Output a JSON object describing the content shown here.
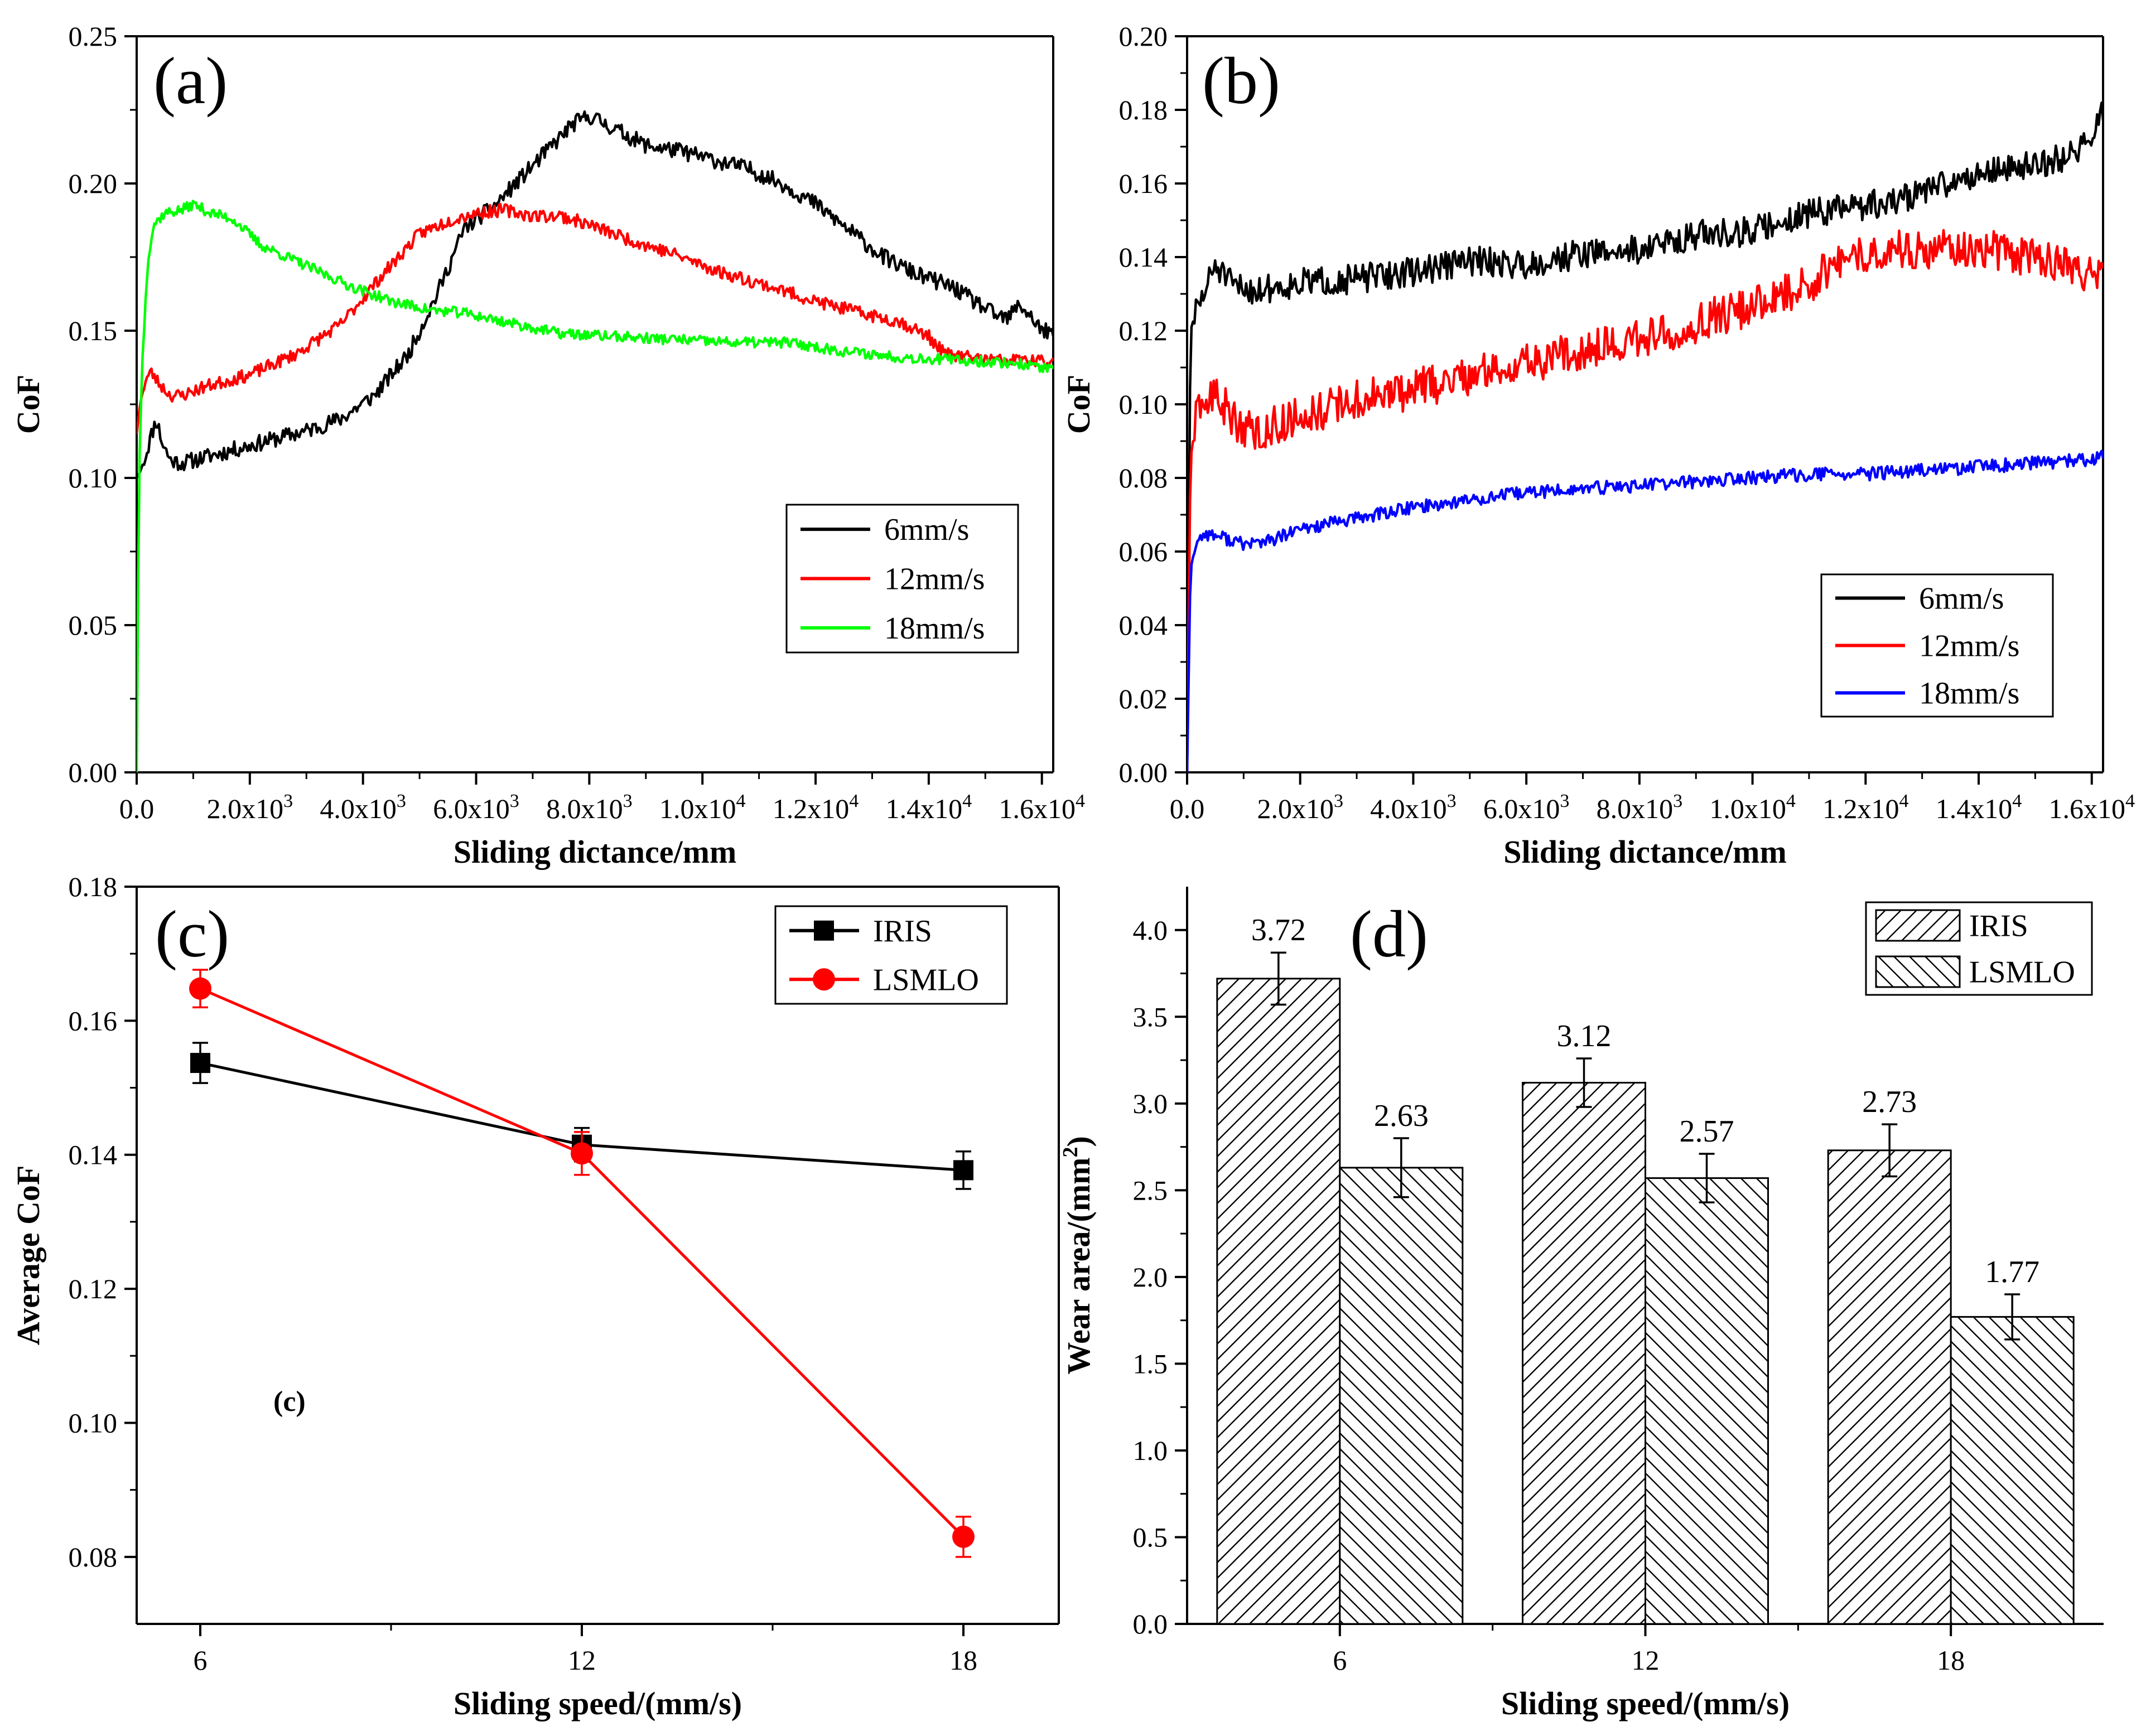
{
  "figure": {
    "background": "#ffffff"
  },
  "chart_data": [
    {
      "id": "a",
      "type": "line",
      "panel_label": "(a)",
      "xlabel": "Sliding dictance/mm",
      "ylabel": "CoF",
      "xlim": [
        0,
        16200
      ],
      "ylim": [
        0,
        0.25
      ],
      "xticks": [
        {
          "value": 0,
          "label": "0.0"
        },
        {
          "value": 2000,
          "label": "2.0x10",
          "exp": "3"
        },
        {
          "value": 4000,
          "label": "4.0x10",
          "exp": "3"
        },
        {
          "value": 6000,
          "label": "6.0x10",
          "exp": "3"
        },
        {
          "value": 8000,
          "label": "8.0x10",
          "exp": "3"
        },
        {
          "value": 10000,
          "label": "1.0x10",
          "exp": "4"
        },
        {
          "value": 12000,
          "label": "1.2x10",
          "exp": "4"
        },
        {
          "value": 14000,
          "label": "1.4x10",
          "exp": "4"
        },
        {
          "value": 16000,
          "label": "1.6x10",
          "exp": "4"
        }
      ],
      "yticks": [
        {
          "value": 0,
          "label": "0.00"
        },
        {
          "value": 0.05,
          "label": "0.05"
        },
        {
          "value": 0.1,
          "label": "0.10"
        },
        {
          "value": 0.15,
          "label": "0.15"
        },
        {
          "value": 0.2,
          "label": "0.20"
        },
        {
          "value": 0.25,
          "label": "0.25"
        }
      ],
      "legend_position": "middle-right",
      "series": [
        {
          "name": "6mm/s",
          "color": "#000000",
          "noise": 0.0028,
          "seed": 11,
          "x": [
            0,
            60,
            150,
            250,
            350,
            450,
            600,
            800,
            1200,
            2000,
            3000,
            3600,
            4200,
            4800,
            5300,
            5800,
            6300,
            6800,
            7300,
            7700,
            8000,
            8400,
            9000,
            9600,
            10200,
            10800,
            11400,
            12000,
            12600,
            13200,
            13800,
            14400,
            14800,
            15200,
            15400,
            15600,
            15800,
            16000,
            16200
          ],
          "y": [
            0.1,
            0.102,
            0.107,
            0.114,
            0.12,
            0.112,
            0.106,
            0.105,
            0.107,
            0.111,
            0.116,
            0.12,
            0.128,
            0.142,
            0.162,
            0.185,
            0.192,
            0.202,
            0.212,
            0.22,
            0.223,
            0.219,
            0.213,
            0.211,
            0.208,
            0.205,
            0.2,
            0.193,
            0.184,
            0.175,
            0.169,
            0.165,
            0.16,
            0.155,
            0.154,
            0.159,
            0.155,
            0.15,
            0.149
          ]
        },
        {
          "name": "12mm/s",
          "color": "#ff0000",
          "noise": 0.0022,
          "seed": 23,
          "x": [
            0,
            60,
            150,
            250,
            400,
            600,
            800,
            1200,
            2000,
            2800,
            3600,
            4300,
            5000,
            5600,
            6000,
            6500,
            7000,
            7500,
            8000,
            8700,
            9500,
            10300,
            11200,
            12000,
            12800,
            13500,
            14000,
            14300,
            14700,
            15200,
            15700,
            16200
          ],
          "y": [
            0.115,
            0.125,
            0.133,
            0.136,
            0.132,
            0.128,
            0.128,
            0.131,
            0.135,
            0.142,
            0.152,
            0.168,
            0.183,
            0.188,
            0.19,
            0.191,
            0.189,
            0.189,
            0.186,
            0.181,
            0.176,
            0.17,
            0.165,
            0.16,
            0.156,
            0.153,
            0.148,
            0.142,
            0.141,
            0.14,
            0.14,
            0.139
          ]
        },
        {
          "name": "18mm/s",
          "color": "#00ff00",
          "noise": 0.0018,
          "seed": 37,
          "x": [
            0,
            40,
            100,
            200,
            300,
            500,
            800,
            1000,
            1300,
            1700,
            2200,
            3000,
            3800,
            4500,
            5200,
            5800,
            6500,
            7500,
            8500,
            9500,
            10500,
            11500,
            12500,
            13500,
            14500,
            15500,
            16200
          ],
          "y": [
            0.0,
            0.1,
            0.14,
            0.175,
            0.186,
            0.19,
            0.191,
            0.193,
            0.19,
            0.188,
            0.179,
            0.172,
            0.165,
            0.16,
            0.157,
            0.156,
            0.153,
            0.149,
            0.148,
            0.147,
            0.146,
            0.146,
            0.143,
            0.141,
            0.14,
            0.139,
            0.137
          ]
        }
      ]
    },
    {
      "id": "b",
      "type": "line",
      "panel_label": "(b)",
      "xlabel": "Sliding dictance/mm",
      "ylabel": "CoF",
      "xlim": [
        0,
        16200
      ],
      "ylim": [
        0,
        0.2
      ],
      "xticks": [
        {
          "value": 0,
          "label": "0.0"
        },
        {
          "value": 2000,
          "label": "2.0x10",
          "exp": "3"
        },
        {
          "value": 4000,
          "label": "4.0x10",
          "exp": "3"
        },
        {
          "value": 6000,
          "label": "6.0x10",
          "exp": "3"
        },
        {
          "value": 8000,
          "label": "8.0x10",
          "exp": "3"
        },
        {
          "value": 10000,
          "label": "1.0x10",
          "exp": "4"
        },
        {
          "value": 12000,
          "label": "1.2x10",
          "exp": "4"
        },
        {
          "value": 14000,
          "label": "1.4x10",
          "exp": "4"
        },
        {
          "value": 16000,
          "label": "1.6x10",
          "exp": "4"
        }
      ],
      "yticks": [
        {
          "value": 0,
          "label": "0.00"
        },
        {
          "value": 0.02,
          "label": "0.02"
        },
        {
          "value": 0.04,
          "label": "0.04"
        },
        {
          "value": 0.06,
          "label": "0.06"
        },
        {
          "value": 0.08,
          "label": "0.08"
        },
        {
          "value": 0.1,
          "label": "0.10"
        },
        {
          "value": 0.12,
          "label": "0.12"
        },
        {
          "value": 0.14,
          "label": "0.14"
        },
        {
          "value": 0.16,
          "label": "0.16"
        },
        {
          "value": 0.18,
          "label": "0.18"
        },
        {
          "value": 0.2,
          "label": "0.20"
        }
      ],
      "legend_position": "lower-right",
      "series": [
        {
          "name": "6mm/s",
          "color": "#000000",
          "noise": 0.004,
          "seed": 51,
          "x": [
            0,
            60,
            150,
            300,
            500,
            800,
            1200,
            2000,
            3000,
            4000,
            5000,
            6000,
            7000,
            8000,
            9000,
            10000,
            11000,
            12000,
            12500,
            13000,
            13500,
            14000,
            14500,
            15000,
            15500,
            16000,
            16200
          ],
          "y": [
            0.0,
            0.12,
            0.125,
            0.13,
            0.138,
            0.132,
            0.131,
            0.133,
            0.134,
            0.136,
            0.139,
            0.138,
            0.141,
            0.142,
            0.146,
            0.147,
            0.152,
            0.154,
            0.155,
            0.158,
            0.16,
            0.163,
            0.164,
            0.165,
            0.167,
            0.172,
            0.18
          ]
        },
        {
          "name": "12mm/s",
          "color": "#ff0000",
          "noise": 0.0055,
          "seed": 63,
          "x": [
            0,
            60,
            150,
            300,
            500,
            800,
            1200,
            2000,
            3000,
            4000,
            5000,
            6000,
            7000,
            8000,
            9000,
            10000,
            11000,
            11500,
            12000,
            12500,
            13000,
            13500,
            14000,
            14500,
            15000,
            15500,
            16000,
            16200
          ],
          "y": [
            0.0,
            0.085,
            0.095,
            0.1,
            0.103,
            0.096,
            0.092,
            0.097,
            0.101,
            0.104,
            0.108,
            0.111,
            0.115,
            0.118,
            0.122,
            0.127,
            0.133,
            0.138,
            0.141,
            0.142,
            0.142,
            0.143,
            0.143,
            0.141,
            0.14,
            0.138,
            0.135,
            0.135
          ]
        },
        {
          "name": "18mm/s",
          "color": "#0000ff",
          "noise": 0.0018,
          "seed": 77,
          "x": [
            0,
            60,
            150,
            300,
            600,
            1000,
            1500,
            2000,
            3000,
            4000,
            5000,
            6000,
            7000,
            8000,
            9000,
            10000,
            11000,
            12000,
            13000,
            14000,
            15000,
            16000,
            16200
          ],
          "y": [
            0.0,
            0.055,
            0.062,
            0.065,
            0.064,
            0.062,
            0.063,
            0.066,
            0.069,
            0.072,
            0.074,
            0.076,
            0.077,
            0.078,
            0.079,
            0.08,
            0.081,
            0.081,
            0.082,
            0.083,
            0.084,
            0.085,
            0.086
          ]
        }
      ]
    },
    {
      "id": "c",
      "type": "line",
      "panel_label": "(c)",
      "inner_label": "(c)",
      "xlabel": "Sliding speed/(mm/s)",
      "ylabel": "Average CoF",
      "xlim": [
        5,
        19.5
      ],
      "ylim": [
        0.07,
        0.18
      ],
      "xticks": [
        {
          "value": 6,
          "label": "6"
        },
        {
          "value": 12,
          "label": "12"
        },
        {
          "value": 18,
          "label": "18"
        }
      ],
      "yticks": [
        {
          "value": 0.08,
          "label": "0.08"
        },
        {
          "value": 0.1,
          "label": "0.10"
        },
        {
          "value": 0.12,
          "label": "0.12"
        },
        {
          "value": 0.14,
          "label": "0.14"
        },
        {
          "value": 0.16,
          "label": "0.16"
        },
        {
          "value": 0.18,
          "label": "0.18"
        }
      ],
      "legend_position": "top-right",
      "series": [
        {
          "name": "IRIS",
          "color": "#000000",
          "marker": "square",
          "x": [
            6,
            12,
            18
          ],
          "y": [
            0.1537,
            0.1415,
            0.1377
          ],
          "err": [
            0.003,
            0.0025,
            0.0028
          ]
        },
        {
          "name": "LSMLO",
          "color": "#ff0000",
          "marker": "circle",
          "x": [
            6,
            12,
            18
          ],
          "y": [
            0.1648,
            0.1402,
            0.083
          ],
          "err": [
            0.0028,
            0.0032,
            0.003
          ]
        }
      ]
    },
    {
      "id": "d",
      "type": "bar",
      "panel_label": "(d)",
      "xlabel": "Sliding speed/(mm/s)",
      "ylabel": "Wear area/(mm",
      "ylabel_sup": "2",
      "ylabel_end": ")",
      "categories": [
        "6",
        "12",
        "18"
      ],
      "ylim": [
        0,
        4.25
      ],
      "yticks": [
        {
          "value": 0,
          "label": "0.0"
        },
        {
          "value": 0.5,
          "label": "0.5"
        },
        {
          "value": 1,
          "label": "1.0"
        },
        {
          "value": 1.5,
          "label": "1.5"
        },
        {
          "value": 2,
          "label": "2.0"
        },
        {
          "value": 2.5,
          "label": "2.5"
        },
        {
          "value": 3,
          "label": "3.0"
        },
        {
          "value": 3.5,
          "label": "3.5"
        },
        {
          "value": 4,
          "label": "4.0"
        }
      ],
      "legend_position": "top-right",
      "series": [
        {
          "name": "IRIS",
          "pattern": "forward-hatch",
          "values": [
            3.72,
            3.12,
            2.73
          ],
          "labels": [
            "3.72",
            "3.12",
            "2.73"
          ],
          "err": [
            0.15,
            0.14,
            0.15
          ]
        },
        {
          "name": "LSMLO",
          "pattern": "back-hatch",
          "values": [
            2.63,
            2.57,
            1.77
          ],
          "labels": [
            "2.63",
            "2.57",
            "1.77"
          ],
          "err": [
            0.17,
            0.14,
            0.13
          ]
        }
      ]
    }
  ]
}
